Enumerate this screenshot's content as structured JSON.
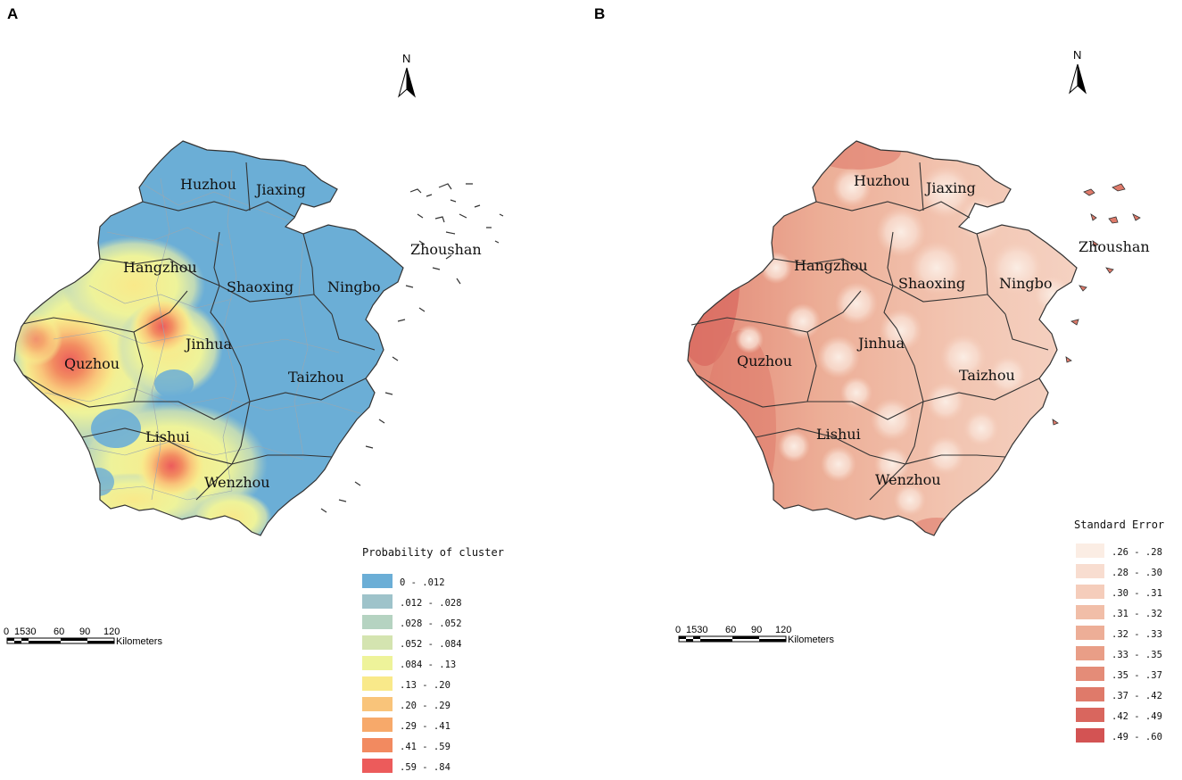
{
  "panels": [
    {
      "letter": "A",
      "north": "N",
      "cities": [
        "Huzhou",
        "Jiaxing",
        "Hangzhou",
        "Shaoxing",
        "Ningbo",
        "Zhoushan",
        "Jinhua",
        "Quzhou",
        "Taizhou",
        "Lishui",
        "Wenzhou"
      ],
      "legend": {
        "title": "Probability of cluster",
        "items": [
          {
            "label": "0  -  .012",
            "color": "#6baed6"
          },
          {
            "label": ".012  -  .028",
            "color": "#9ec3ca"
          },
          {
            "label": ".028  -  .052",
            "color": "#b5d3c1"
          },
          {
            "label": ".052  -  .084",
            "color": "#d4e4b0"
          },
          {
            "label": ".084  -  .13",
            "color": "#eef39a"
          },
          {
            "label": ".13  -  .20",
            "color": "#f9e98a"
          },
          {
            "label": ".20  -  .29",
            "color": "#f9c47a"
          },
          {
            "label": ".29  -  .41",
            "color": "#f7a96a"
          },
          {
            "label": ".41  -  .59",
            "color": "#f28a60"
          },
          {
            "label": ".59  -  .84",
            "color": "#ec5b5b"
          }
        ]
      },
      "scale": {
        "ticks": [
          "0",
          "1530",
          "60",
          "90",
          "120"
        ],
        "unit": "Kilometers"
      }
    },
    {
      "letter": "B",
      "north": "N",
      "cities": [
        "Huzhou",
        "Jiaxing",
        "Hangzhou",
        "Shaoxing",
        "Ningbo",
        "Zhoushan",
        "Jinhua",
        "Quzhou",
        "Taizhou",
        "Lishui",
        "Wenzhou"
      ],
      "legend": {
        "title": "Standard Error",
        "items": [
          {
            "label": ".26  -  .28",
            "color": "#fbede4"
          },
          {
            "label": ".28  -  .30",
            "color": "#f8ddd0"
          },
          {
            "label": ".30  -  .31",
            "color": "#f5cdbb"
          },
          {
            "label": ".31  -  .32",
            "color": "#f1bea8"
          },
          {
            "label": ".32  -  .33",
            "color": "#edae97"
          },
          {
            "label": ".33  -  .35",
            "color": "#e99e87"
          },
          {
            "label": ".35  -  .37",
            "color": "#e48c78"
          },
          {
            "label": ".37  -  .42",
            "color": "#df7a6a"
          },
          {
            "label": ".42  -  .49",
            "color": "#d9665e"
          },
          {
            "label": ".49  -  .60",
            "color": "#d35353"
          }
        ]
      },
      "scale": {
        "ticks": [
          "0",
          "1530",
          "60",
          "90",
          "120"
        ],
        "unit": "Kilometers"
      }
    }
  ]
}
